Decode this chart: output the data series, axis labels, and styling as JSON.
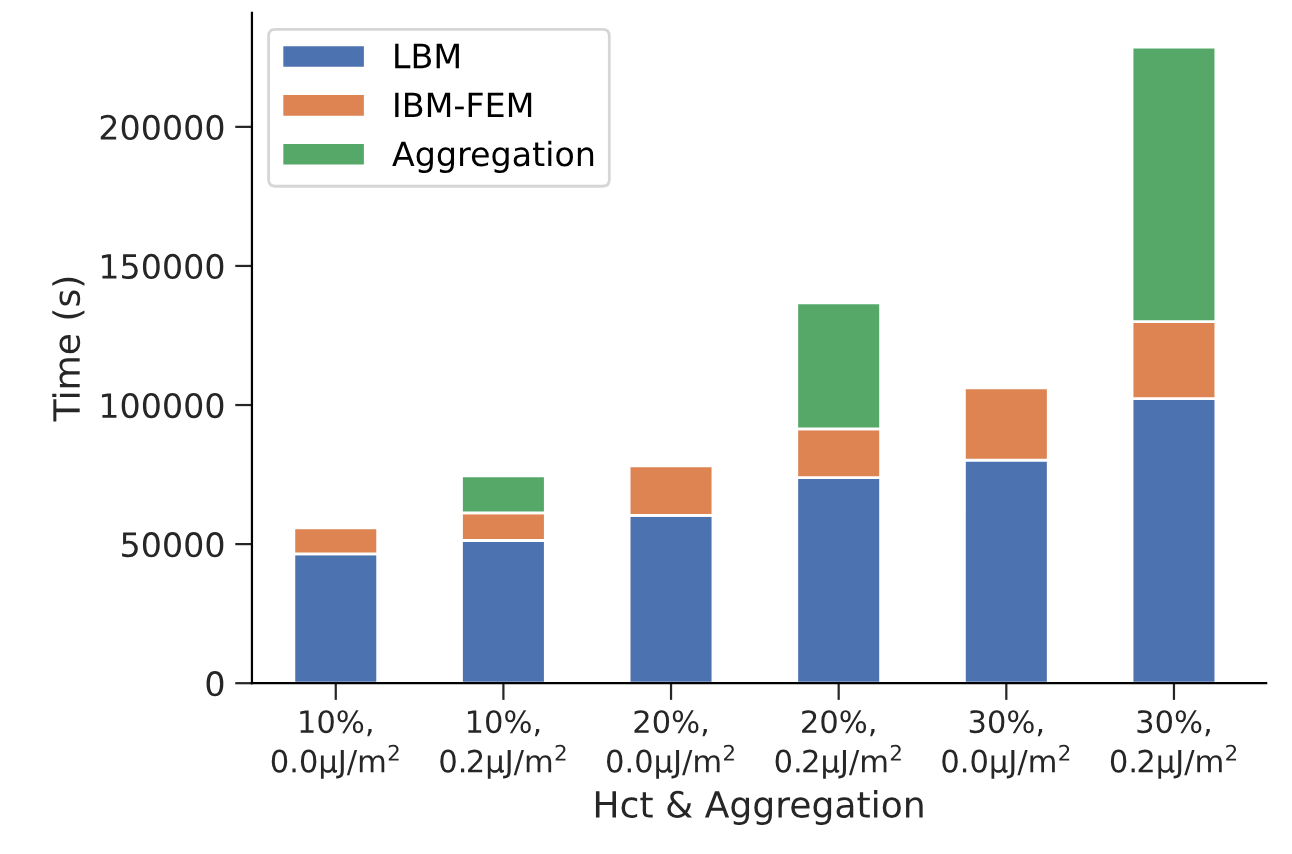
{
  "chart_data": {
    "type": "bar",
    "stacked": true,
    "xlabel": "Hct & Aggregation",
    "ylabel": "Time (s)",
    "categories": [
      "10%,\n0.0μJ/m$^{2}$",
      "10%,\n0.2μJ/m$^{2}$",
      "20%,\n0.0μJ/m$^{2}$",
      "20%,\n0.2μJ/m$^{2}$",
      "30%,\n0.0μJ/m$^{2}$",
      "30%,\n0.2μJ/m$^{2}$"
    ],
    "series": [
      {
        "name": "LBM",
        "color": "#4c72b0",
        "values": [
          46500,
          51300,
          60300,
          73900,
          80200,
          102300
        ]
      },
      {
        "name": "IBM-FEM",
        "color": "#dd8452",
        "values": [
          9300,
          9900,
          17800,
          17500,
          26000,
          27700
        ]
      },
      {
        "name": "Aggregation",
        "color": "#55a868",
        "values": [
          null,
          13300,
          null,
          45300,
          null,
          98700
        ]
      }
    ],
    "ylim": [
      0,
      241000
    ],
    "yticks": [
      0,
      50000,
      100000,
      150000,
      200000
    ],
    "grid": false,
    "legend": "top left"
  }
}
